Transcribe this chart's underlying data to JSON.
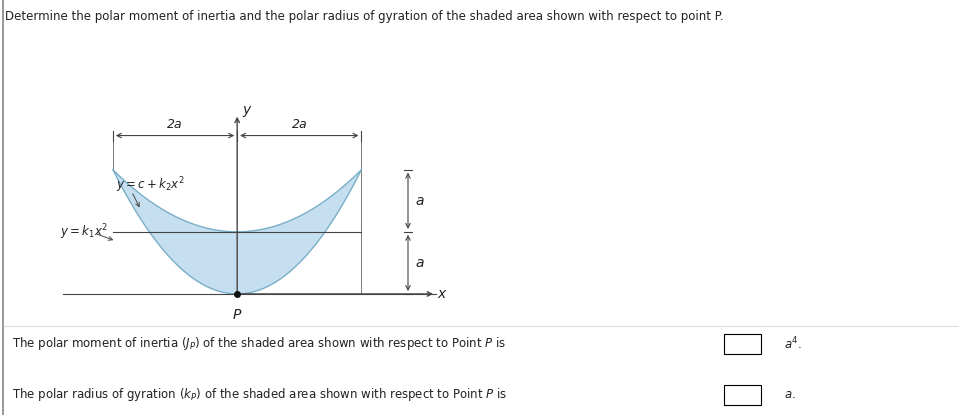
{
  "title": "Determine the polar moment of inertia and the polar radius of gyration of the shaded area shown with respect to point P.",
  "bg_color": "#ffffff",
  "shaded_color": "#c5dff0",
  "shaded_edge_color": "#7aaec8",
  "line_color": "#444444",
  "text_color": "#222222",
  "label_2a_left": "2a",
  "label_2a_right": "2a",
  "label_a_top": "a",
  "label_a_bot": "a",
  "label_P": "P",
  "label_x": "x",
  "label_y": "y"
}
